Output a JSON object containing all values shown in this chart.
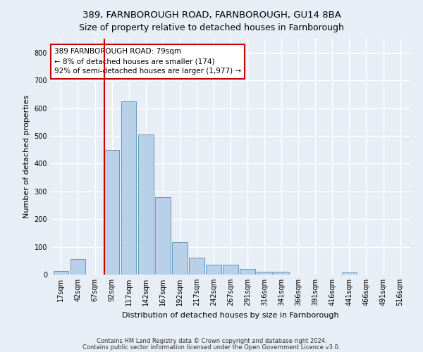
{
  "title1": "389, FARNBOROUGH ROAD, FARNBOROUGH, GU14 8BA",
  "title2": "Size of property relative to detached houses in Farnborough",
  "xlabel": "Distribution of detached houses by size in Farnborough",
  "ylabel": "Number of detached properties",
  "categories": [
    "17sqm",
    "42sqm",
    "67sqm",
    "92sqm",
    "117sqm",
    "142sqm",
    "167sqm",
    "192sqm",
    "217sqm",
    "242sqm",
    "267sqm",
    "291sqm",
    "316sqm",
    "341sqm",
    "366sqm",
    "391sqm",
    "416sqm",
    "441sqm",
    "466sqm",
    "491sqm",
    "516sqm"
  ],
  "values": [
    12,
    55,
    0,
    450,
    625,
    505,
    280,
    117,
    62,
    35,
    35,
    20,
    10,
    10,
    0,
    0,
    0,
    8,
    0,
    0,
    0
  ],
  "bar_color": "#b8d0e8",
  "bar_edge_color": "#6699bb",
  "background_color": "#e8eef5",
  "grid_color": "#ffffff",
  "vline_color": "#cc0000",
  "annotation_text": "389 FARNBOROUGH ROAD: 79sqm\n← 8% of detached houses are smaller (174)\n92% of semi-detached houses are larger (1,977) →",
  "annotation_box_color": "white",
  "annotation_box_edge_color": "#cc0000",
  "ylim": [
    0,
    850
  ],
  "yticks": [
    0,
    100,
    200,
    300,
    400,
    500,
    600,
    700,
    800
  ],
  "footnote1": "Contains HM Land Registry data © Crown copyright and database right 2024.",
  "footnote2": "Contains public sector information licensed under the Open Government Licence v3.0.",
  "title1_fontsize": 9.5,
  "title2_fontsize": 9,
  "axis_label_fontsize": 8,
  "tick_fontsize": 7,
  "annotation_fontsize": 7.5,
  "footnote_fontsize": 6
}
